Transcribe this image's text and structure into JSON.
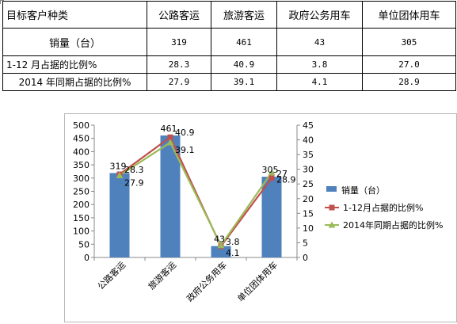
{
  "table": {
    "header_label": "目标客户种类",
    "categories": [
      "公路客运",
      "旅游客运",
      "政府公务用车",
      "单位团体用车"
    ],
    "rows": [
      {
        "label": "销量（台）",
        "values": [
          "319",
          "461",
          "43",
          "305"
        ]
      },
      {
        "label": "1-12 月占据的比例%",
        "values": [
          "28.3",
          "40.9",
          "3.8",
          "27.0"
        ]
      },
      {
        "label": "2014 年同期占据的比例%",
        "values": [
          "27.9",
          "39.1",
          "4.1",
          "28.9"
        ]
      }
    ]
  },
  "chart_data": {
    "type": "bar",
    "categories": [
      "公路客运",
      "旅游客运",
      "政府公务用车",
      "单位团体用车"
    ],
    "series": [
      {
        "name": "销量（台）",
        "type": "bar",
        "axis": "left",
        "values": [
          319,
          461,
          43,
          305
        ],
        "color": "#4f81bd"
      },
      {
        "name": "1-12月占据的比例%",
        "type": "line",
        "axis": "right",
        "values": [
          28.3,
          40.9,
          3.8,
          27
        ],
        "color": "#c0504d",
        "marker": "square"
      },
      {
        "name": "2014年同期占据的比例%",
        "type": "line",
        "axis": "right",
        "values": [
          27.9,
          39.1,
          4.1,
          28.9
        ],
        "color": "#9bbb59",
        "marker": "triangle"
      }
    ],
    "y_left": {
      "min": 0,
      "max": 500,
      "ticks": [
        0,
        50,
        100,
        150,
        200,
        250,
        300,
        350,
        400,
        450,
        500
      ]
    },
    "y_right": {
      "min": 0,
      "max": 45,
      "ticks": [
        0,
        5,
        10,
        15,
        20,
        25,
        30,
        35,
        40,
        45
      ]
    },
    "legend_position": "right",
    "grid": false
  }
}
